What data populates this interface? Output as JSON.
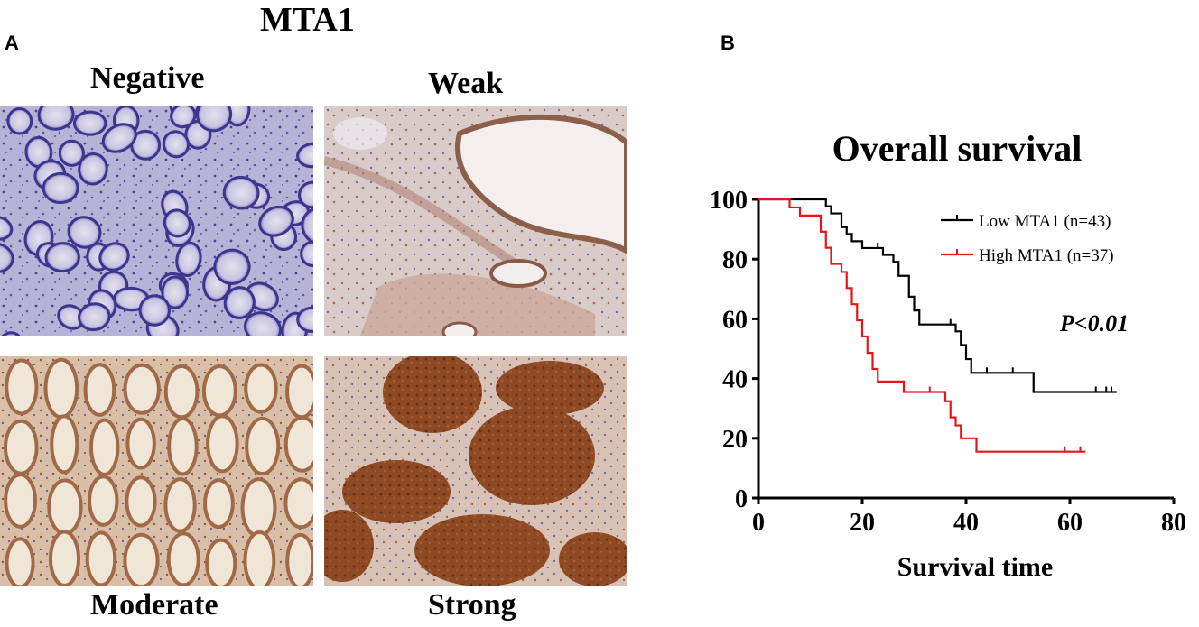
{
  "figure": {
    "panel_a_letter": "A",
    "panel_b_letter": "B",
    "ihc_title": "MTA1",
    "ihc_panels": [
      {
        "label": "Negative",
        "stain": "negative"
      },
      {
        "label": "Weak",
        "stain": "weak"
      },
      {
        "label": "Moderate",
        "stain": "moderate"
      },
      {
        "label": "Strong",
        "stain": "strong"
      }
    ]
  },
  "chart_data": {
    "type": "line",
    "title": "Overall survival",
    "xlabel": "Survival time",
    "ylabel": "",
    "xlim": [
      0,
      80
    ],
    "ylim": [
      0,
      100
    ],
    "xticks": [
      0,
      20,
      40,
      60,
      80
    ],
    "yticks": [
      0,
      20,
      40,
      60,
      80,
      100
    ],
    "annotation": "P<0.01",
    "legend_position": "top-right",
    "grid": false,
    "series": [
      {
        "name": "Low  MTA1 (n=43)",
        "color": "#000000",
        "step": [
          [
            0,
            100
          ],
          [
            13,
            100
          ],
          [
            13,
            97.7
          ],
          [
            14,
            97.7
          ],
          [
            14,
            95.3
          ],
          [
            16,
            95.3
          ],
          [
            16,
            90.7
          ],
          [
            17,
            90.7
          ],
          [
            17,
            88.4
          ],
          [
            18,
            88.4
          ],
          [
            18,
            86
          ],
          [
            20,
            86
          ],
          [
            20,
            83.7
          ],
          [
            24,
            83.7
          ],
          [
            24,
            81.4
          ],
          [
            26,
            81.4
          ],
          [
            26,
            79.1
          ],
          [
            27,
            79.1
          ],
          [
            27,
            74.4
          ],
          [
            29,
            74.4
          ],
          [
            29,
            67.4
          ],
          [
            30,
            67.4
          ],
          [
            30,
            62.8
          ],
          [
            31,
            62.8
          ],
          [
            31,
            58.1
          ],
          [
            38,
            58.1
          ],
          [
            38,
            55.8
          ],
          [
            39,
            55.8
          ],
          [
            39,
            51.2
          ],
          [
            40,
            51.2
          ],
          [
            40,
            46.5
          ],
          [
            41,
            46.5
          ],
          [
            41,
            41.9
          ],
          [
            53,
            41.9
          ],
          [
            53,
            35.5
          ],
          [
            69,
            35.5
          ]
        ],
        "censor": [
          [
            23,
            83.7
          ],
          [
            37,
            58.1
          ],
          [
            44,
            41.9
          ],
          [
            49,
            41.9
          ],
          [
            65,
            35.5
          ],
          [
            67,
            35.5
          ],
          [
            68,
            35.5
          ]
        ]
      },
      {
        "name": "High MTA1 (n=37)",
        "color": "#e8141c",
        "step": [
          [
            0,
            100
          ],
          [
            6,
            100
          ],
          [
            6,
            97.3
          ],
          [
            8,
            97.3
          ],
          [
            8,
            94.6
          ],
          [
            12,
            94.6
          ],
          [
            12,
            89.2
          ],
          [
            13,
            89.2
          ],
          [
            13,
            83.8
          ],
          [
            14,
            83.8
          ],
          [
            14,
            78.4
          ],
          [
            16,
            78.4
          ],
          [
            16,
            75.7
          ],
          [
            17,
            75.7
          ],
          [
            17,
            70.3
          ],
          [
            18,
            70.3
          ],
          [
            18,
            64.9
          ],
          [
            19,
            64.9
          ],
          [
            19,
            59.5
          ],
          [
            20,
            59.5
          ],
          [
            20,
            54.1
          ],
          [
            21,
            54.1
          ],
          [
            21,
            48.6
          ],
          [
            22,
            48.6
          ],
          [
            22,
            43.2
          ],
          [
            23,
            43.2
          ],
          [
            23,
            39
          ],
          [
            28,
            39
          ],
          [
            28,
            35.5
          ],
          [
            36,
            35.5
          ],
          [
            36,
            32.4
          ],
          [
            37,
            32.4
          ],
          [
            37,
            27
          ],
          [
            38,
            27
          ],
          [
            38,
            24.3
          ],
          [
            39,
            24.3
          ],
          [
            39,
            20
          ],
          [
            42,
            20
          ],
          [
            42,
            15.5
          ],
          [
            63,
            15.5
          ]
        ],
        "censor": [
          [
            33,
            35.5
          ],
          [
            59,
            15.5
          ],
          [
            62,
            15.5
          ]
        ]
      }
    ]
  }
}
